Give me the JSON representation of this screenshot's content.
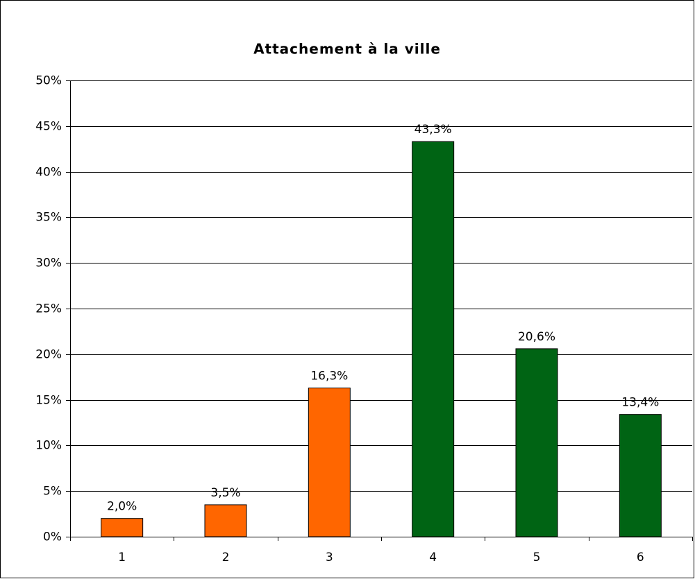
{
  "chart_data": {
    "type": "bar",
    "title": "Attachement à la ville",
    "categories": [
      "1",
      "2",
      "3",
      "4",
      "5",
      "6"
    ],
    "values": [
      2.0,
      3.5,
      16.3,
      43.3,
      20.6,
      13.4
    ],
    "value_labels": [
      "2,0%",
      "3,5%",
      "16,3%",
      "43,3%",
      "20,6%",
      "13,4%"
    ],
    "colors": [
      "#ff6600",
      "#ff6600",
      "#ff6600",
      "#006414",
      "#006414",
      "#006414"
    ],
    "ylim": [
      0,
      50
    ],
    "yticks": [
      {
        "value": 0,
        "label": "0%"
      },
      {
        "value": 5,
        "label": "5%"
      },
      {
        "value": 10,
        "label": "10%"
      },
      {
        "value": 15,
        "label": "15%"
      },
      {
        "value": 20,
        "label": "20%"
      },
      {
        "value": 25,
        "label": "25%"
      },
      {
        "value": 30,
        "label": "30%"
      },
      {
        "value": 35,
        "label": "35%"
      },
      {
        "value": 40,
        "label": "40%"
      },
      {
        "value": 45,
        "label": "45%"
      },
      {
        "value": 50,
        "label": "50%"
      }
    ],
    "grid": true
  }
}
